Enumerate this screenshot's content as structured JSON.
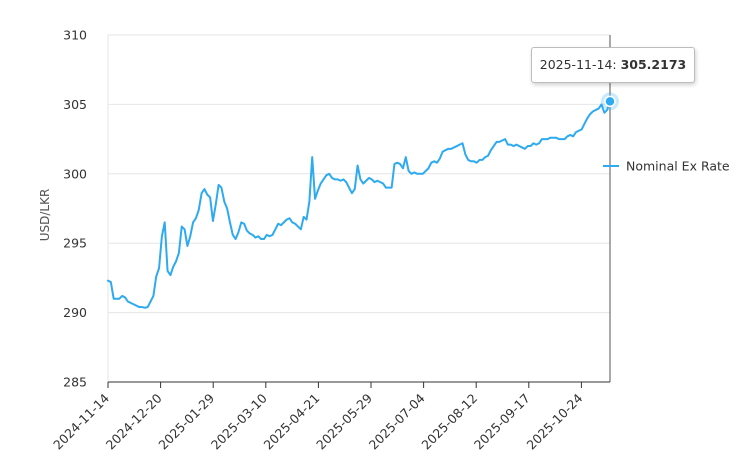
{
  "chart_data": {
    "type": "line",
    "ylabel": "USD/LKR",
    "ylim": [
      285,
      310
    ],
    "yticks": [
      "285",
      "290",
      "295",
      "300",
      "305",
      "310"
    ],
    "xticks": [
      "2024-11-14",
      "2024-12-20",
      "2025-01-29",
      "2025-03-10",
      "2025-04-21",
      "2025-05-29",
      "2025-07-04",
      "2025-08-12",
      "2025-09-17",
      "2025-10-24"
    ],
    "grid": true,
    "legend_position": "right",
    "series": [
      {
        "name": "Nominal Ex Rate",
        "color": "#2eaaf0",
        "values": [
          292.3,
          292.2,
          291.0,
          291.0,
          291.0,
          291.2,
          291.1,
          290.8,
          290.7,
          290.6,
          290.5,
          290.4,
          290.4,
          290.35,
          290.4,
          290.8,
          291.2,
          292.6,
          293.2,
          295.5,
          296.5,
          293.0,
          292.7,
          293.3,
          293.7,
          294.3,
          296.2,
          296.0,
          294.8,
          295.5,
          296.5,
          296.8,
          297.4,
          298.6,
          298.9,
          298.5,
          298.3,
          296.6,
          297.8,
          299.2,
          299.0,
          298.0,
          297.5,
          296.5,
          295.6,
          295.3,
          295.8,
          296.5,
          296.4,
          295.9,
          295.7,
          295.6,
          295.4,
          295.5,
          295.3,
          295.3,
          295.6,
          295.5,
          295.6,
          296.0,
          296.4,
          296.3,
          296.5,
          296.7,
          296.8,
          296.5,
          296.4,
          296.2,
          296.0,
          296.9,
          296.7,
          298.0,
          301.2,
          298.2,
          298.8,
          299.3,
          299.6,
          299.9,
          300.0,
          299.7,
          299.6,
          299.6,
          299.5,
          299.6,
          299.4,
          299.0,
          298.6,
          298.9,
          300.6,
          299.6,
          299.3,
          299.5,
          299.7,
          299.6,
          299.4,
          299.5,
          299.4,
          299.3,
          299.0,
          299.0,
          299.0,
          300.7,
          300.8,
          300.7,
          300.4,
          301.2,
          300.2,
          300.0,
          300.1,
          300.0,
          300.0,
          300.0,
          300.2,
          300.4,
          300.8,
          300.9,
          300.8,
          301.1,
          301.6,
          301.7,
          301.8,
          301.8,
          301.9,
          302.0,
          302.1,
          302.2,
          301.4,
          301.0,
          300.9,
          300.9,
          300.8,
          301.0,
          301.0,
          301.2,
          301.3,
          301.7,
          302.0,
          302.3,
          302.3,
          302.4,
          302.5,
          302.1,
          302.1,
          302.0,
          302.1,
          302.0,
          301.9,
          301.8,
          302.0,
          302.0,
          302.2,
          302.1,
          302.2,
          302.5,
          302.5,
          302.5,
          302.6,
          302.6,
          302.6,
          302.5,
          302.5,
          302.5,
          302.7,
          302.8,
          302.7,
          303.0,
          303.1,
          303.2,
          303.6,
          304.0,
          304.3,
          304.5,
          304.6,
          304.7,
          305.0,
          304.4,
          304.6,
          305.2173
        ]
      }
    ],
    "tooltip": {
      "date": "2025-11-14",
      "separator": ": ",
      "value": "305.2173"
    }
  }
}
